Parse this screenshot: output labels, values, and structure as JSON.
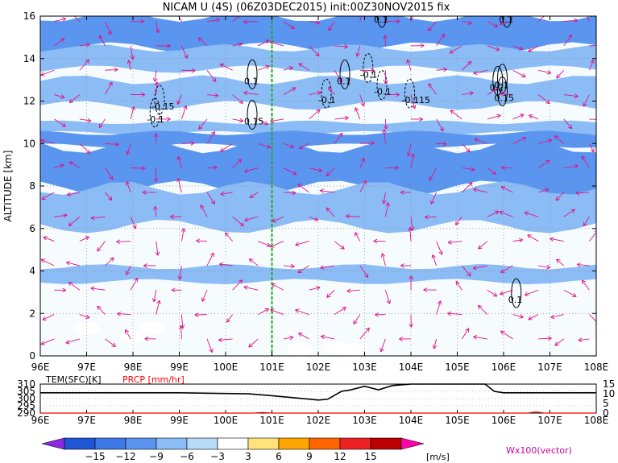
{
  "chart_data": [
    {
      "type": "heatmap",
      "title": "NICAM U (4S) (06Z03DEC2015) init:00Z30NOV2015 fix",
      "xlabel": "",
      "ylabel": "ALTITUDE [km]",
      "x_ticks": [
        "96E",
        "97E",
        "98E",
        "99E",
        "100E",
        "101E",
        "102E",
        "103E",
        "104E",
        "105E",
        "106E",
        "107E",
        "108E"
      ],
      "xlim": [
        96,
        108
      ],
      "y_ticks": [
        0,
        2,
        4,
        6,
        8,
        10,
        12,
        14,
        16
      ],
      "ylim": [
        0,
        16
      ],
      "grid": true,
      "marker_line_lon": 101,
      "marker_line_color": "#22aa22",
      "bands": [
        {
          "y0": 14.5,
          "y1": 16.0,
          "value": -9
        },
        {
          "y0": 13.5,
          "y1": 14.5,
          "value": -4
        },
        {
          "y0": 11.8,
          "y1": 13.0,
          "value": -4
        },
        {
          "y0": 10.5,
          "y1": 11.0,
          "value": -4
        },
        {
          "y0": 9.9,
          "y1": 10.5,
          "value": -7
        },
        {
          "y0": 7.9,
          "y1": 9.9,
          "value": -9
        },
        {
          "y0": 6.1,
          "y1": 7.9,
          "value": -4
        },
        {
          "y0": 3.5,
          "y1": 4.2,
          "value": -4
        }
      ],
      "positive_patches": [
        {
          "lon": 97.0,
          "alt": 1.3,
          "value": 4
        },
        {
          "lon": 98.0,
          "alt": 0.9,
          "value": 4
        },
        {
          "lon": 98.4,
          "alt": 1.3,
          "value": 4
        },
        {
          "lon": 101.6,
          "alt": 0.3,
          "value": 4
        },
        {
          "lon": 102.4,
          "alt": 0.4,
          "value": 4
        },
        {
          "lon": 102.8,
          "alt": 0.3,
          "value": 4
        },
        {
          "lon": 107.9,
          "alt": 0.5,
          "value": 4
        }
      ],
      "contour_labels": [
        {
          "text": "0.1",
          "lon": 103.2,
          "alt": 15.7
        },
        {
          "text": "0.1",
          "lon": 105.9,
          "alt": 15.7
        },
        {
          "text": "0.1",
          "lon": 105.8,
          "alt": 12.6
        },
        {
          "text": "-0.15",
          "lon": 98.4,
          "alt": 11.6
        },
        {
          "text": "-0.1",
          "lon": 98.3,
          "alt": 11.0
        },
        {
          "text": "0.15",
          "lon": 100.4,
          "alt": 10.9
        },
        {
          "text": "0.1",
          "lon": 100.4,
          "alt": 12.8
        },
        {
          "text": "-0.1",
          "lon": 103.2,
          "alt": 12.3
        },
        {
          "text": "-0.1",
          "lon": 102.0,
          "alt": 11.9
        },
        {
          "text": "0.1",
          "lon": 102.4,
          "alt": 12.8
        },
        {
          "text": "-0.115",
          "lon": 103.8,
          "alt": 11.9
        },
        {
          "text": "-0.1",
          "lon": 102.9,
          "alt": 13.1
        },
        {
          "text": "0.2",
          "lon": 105.7,
          "alt": 12.5
        },
        {
          "text": "0.15",
          "lon": 105.8,
          "alt": 12.0
        },
        {
          "text": "0.1",
          "lon": 106.1,
          "alt": 2.5
        }
      ]
    },
    {
      "type": "line",
      "left_label": "TEM(SFC)[K]",
      "right_label": "PRCP [mm/hr]",
      "x_ticks": [
        "96E",
        "97E",
        "98E",
        "99E",
        "100E",
        "101E",
        "102E",
        "103E",
        "104E",
        "105E",
        "106E",
        "107E",
        "108E"
      ],
      "xlim": [
        96,
        108
      ],
      "y_left_ticks": [
        290,
        295,
        300,
        305,
        310
      ],
      "y_left_lim": [
        290,
        310
      ],
      "y_right_ticks": [
        0,
        5,
        10,
        15
      ],
      "y_right_lim": [
        0,
        15
      ],
      "series": [
        {
          "color": "#000000",
          "x": [
            96,
            97,
            98,
            99,
            100,
            100.5,
            101,
            101.5,
            102,
            102.2,
            102.5,
            102.7,
            103,
            103.3,
            103.6,
            104,
            104.5,
            105,
            105.6,
            105.8,
            106,
            106.5,
            107,
            108
          ],
          "y": [
            304,
            304,
            304,
            304,
            303.5,
            303.3,
            302,
            300.5,
            299,
            299.5,
            305,
            306,
            308.5,
            306,
            309,
            310,
            310,
            310,
            310,
            305,
            304,
            304,
            304,
            304
          ]
        },
        {
          "color": "#ff0000",
          "x": [
            96,
            100.6,
            100.8,
            101,
            106.5,
            106.7,
            106.9,
            108
          ],
          "y": [
            0,
            0,
            0.3,
            0,
            0,
            0.6,
            0,
            0
          ]
        }
      ]
    }
  ],
  "colorbar": {
    "ticks": [
      "−15",
      "−12",
      "−9",
      "−6",
      "−3",
      "3",
      "6",
      "9",
      "12",
      "15"
    ],
    "unit": "[m/s]",
    "colors": [
      "#8a2be2",
      "#1e56d6",
      "#3c78e6",
      "#5a96f0",
      "#8cbcf5",
      "#b6dcf8",
      "#ffffff",
      "#ffe27a",
      "#ffa500",
      "#ff6600",
      "#ee2222",
      "#bb0000",
      "#ff00aa"
    ]
  },
  "vector_label": "Wx100(vector)",
  "colors": {
    "vector": "#dd1488",
    "marker_line": "#22aa22",
    "prcp_label": "#ff0000",
    "vector_label": "#cc0099"
  }
}
